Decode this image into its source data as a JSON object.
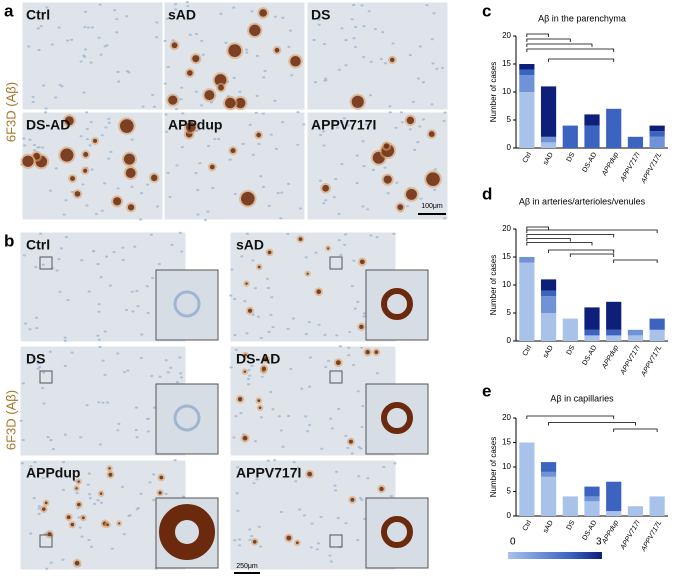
{
  "figure": {
    "panel_a": {
      "letter": "a",
      "stain_label": "6F3D (Aβ)",
      "images": [
        "Ctrl",
        "sAD",
        "DS",
        "DS-AD",
        "APPdup",
        "APPV717I"
      ],
      "scale_bar": "100μm"
    },
    "panel_b": {
      "letter": "b",
      "stain_label": "6F3D (Aβ)",
      "images": [
        "Ctrl",
        "sAD",
        "DS",
        "DS-AD",
        "APPdup",
        "APPV717I"
      ],
      "scale_bar": "250μm"
    },
    "colorbar": {
      "min": 0,
      "max": 3
    }
  },
  "chart_data": [
    {
      "type": "bar",
      "stacked": true,
      "letter": "c",
      "title": "Aβ in the parenchyma",
      "y_label": "Number of cases",
      "categories": [
        "Ctrl",
        "sAD",
        "DS",
        "DS-AD",
        "APPdup",
        "APPV717I",
        "APPV717L"
      ],
      "series": [
        {
          "color": "#a9c2ea",
          "values": [
            10,
            1,
            0,
            0,
            0,
            0,
            0
          ]
        },
        {
          "color": "#6f93d6",
          "values": [
            3,
            1,
            0,
            0,
            0,
            0,
            2
          ]
        },
        {
          "color": "#3b63bf",
          "values": [
            1,
            0,
            4,
            4,
            7,
            2,
            1
          ]
        },
        {
          "color": "#0e1f7a",
          "values": [
            1,
            9,
            0,
            2,
            0,
            0,
            1
          ]
        }
      ],
      "ylim": [
        0,
        20
      ],
      "yticks": [
        0,
        5,
        10,
        15,
        20
      ]
    },
    {
      "type": "bar",
      "stacked": true,
      "letter": "d",
      "title": "Aβ in arteries/arterioles/venules",
      "y_label": "Number of cases",
      "categories": [
        "Ctrl",
        "sAD",
        "DS",
        "DS-AD",
        "APPdup",
        "APPV717I",
        "APPV717L"
      ],
      "series": [
        {
          "color": "#a9c2ea",
          "values": [
            14,
            5,
            4,
            1,
            1,
            1,
            2
          ]
        },
        {
          "color": "#6f93d6",
          "values": [
            1,
            3,
            0,
            0,
            0,
            1,
            0
          ]
        },
        {
          "color": "#3b63bf",
          "values": [
            0,
            1,
            0,
            1,
            1,
            0,
            2
          ]
        },
        {
          "color": "#0e1f7a",
          "values": [
            0,
            2,
            0,
            4,
            5,
            0,
            0
          ]
        }
      ],
      "ylim": [
        0,
        20
      ],
      "yticks": [
        0,
        5,
        10,
        15,
        20
      ]
    },
    {
      "type": "bar",
      "stacked": true,
      "letter": "e",
      "title": "Aβ in capillaries",
      "y_label": "Number of cases",
      "categories": [
        "Ctrl",
        "sAD",
        "DS",
        "DS-AD",
        "APPdup",
        "APPV717I",
        "APPV717L"
      ],
      "series": [
        {
          "color": "#a9c2ea",
          "values": [
            15,
            8,
            4,
            3,
            1,
            2,
            4
          ]
        },
        {
          "color": "#6f93d6",
          "values": [
            0,
            1,
            0,
            1,
            0,
            0,
            0
          ]
        },
        {
          "color": "#3b63bf",
          "values": [
            0,
            2,
            0,
            2,
            6,
            0,
            0
          ]
        },
        {
          "color": "#0e1f7a",
          "values": [
            0,
            0,
            0,
            0,
            0,
            0,
            0
          ]
        }
      ],
      "ylim": [
        0,
        20
      ],
      "yticks": [
        0,
        5,
        10,
        15,
        20
      ]
    }
  ]
}
